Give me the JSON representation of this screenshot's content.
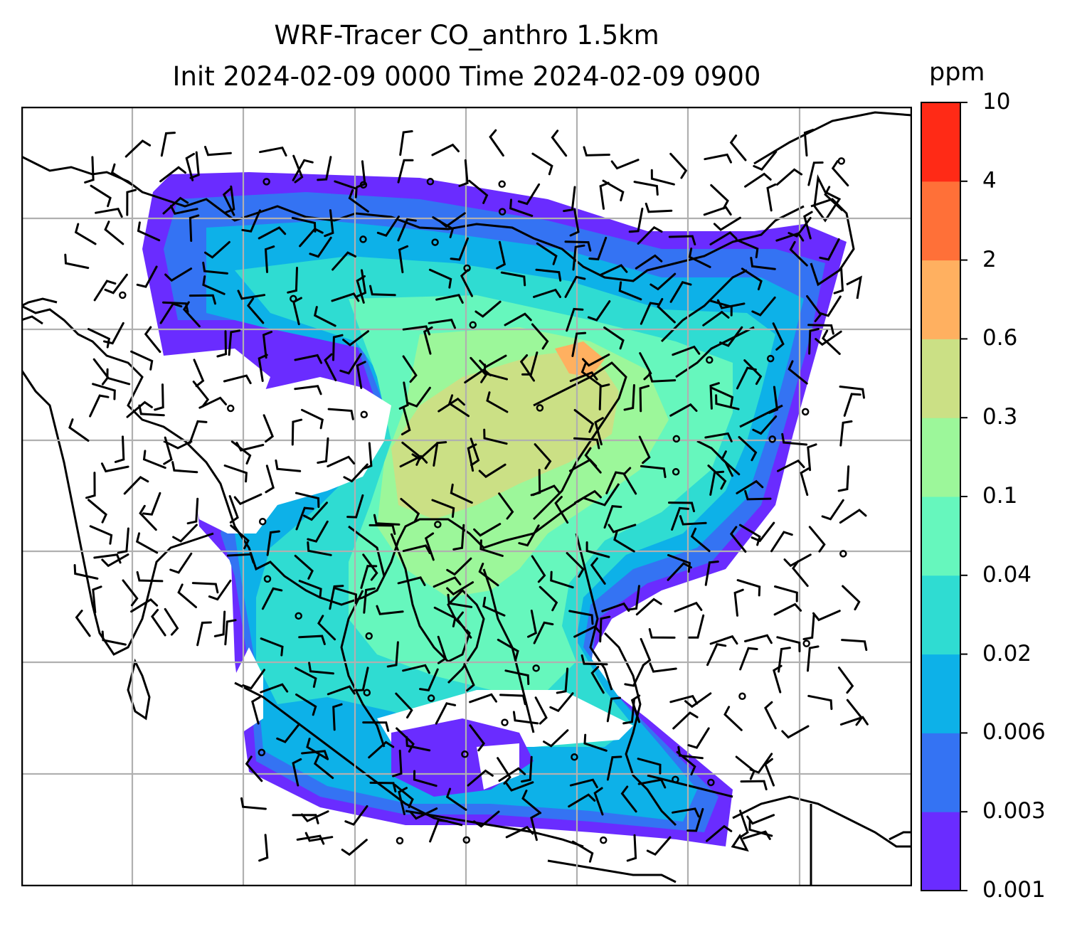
{
  "title": {
    "line1": "WRF-Tracer CO_anthro 1.5km",
    "line2": "Init 2024-02-09 0000 Time 2024-02-09 0900"
  },
  "colorbar": {
    "unit": "ppm",
    "levels": [
      "0.001",
      "0.003",
      "0.006",
      "0.02",
      "0.04",
      "0.1",
      "0.3",
      "0.6",
      "2",
      "4",
      "10"
    ],
    "colors": [
      "#6a2cff",
      "#3473f3",
      "#0db1e8",
      "#2fdcd2",
      "#66f7bd",
      "#9cf79a",
      "#cbe085",
      "#ffb060",
      "#ff7038",
      "#ff2a16"
    ]
  },
  "map": {
    "field": "CO_anthro tracer concentration",
    "overlay": "wind barbs",
    "gridlines": true,
    "coastlines": true
  }
}
